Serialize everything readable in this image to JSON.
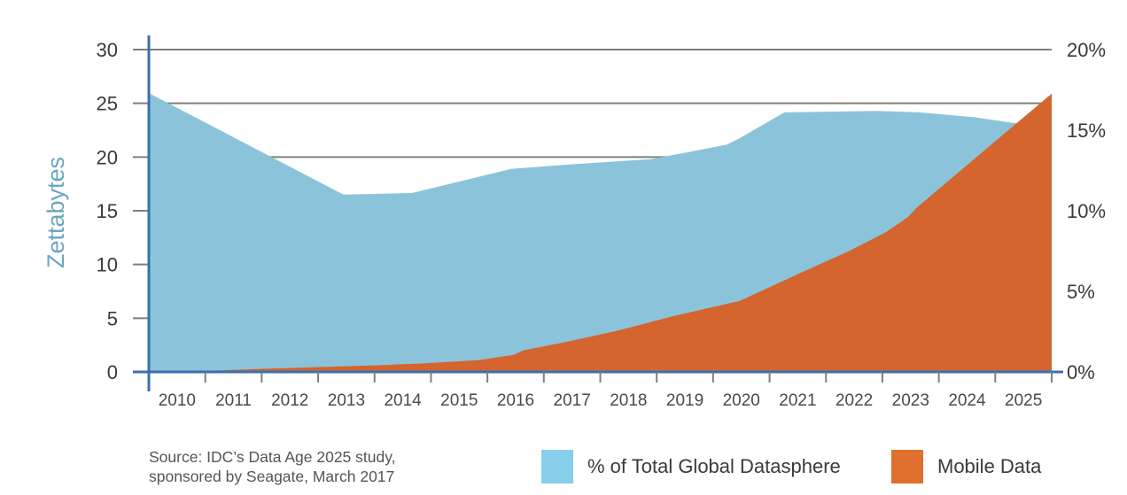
{
  "chart_data": {
    "type": "area",
    "title": "",
    "xlabel": "",
    "ylabel": "Zettabytes",
    "ylabel_right": "",
    "categories": [
      "2010",
      "2011",
      "2012",
      "2013",
      "2014",
      "2015",
      "2016",
      "2017",
      "2018",
      "2019",
      "2020",
      "2021",
      "2022",
      "2023",
      "2024",
      "2025"
    ],
    "x_range": [
      2009.5,
      2025.5
    ],
    "ylim": [
      0,
      30
    ],
    "y_ticks": [
      0,
      5,
      10,
      15,
      20,
      25,
      30
    ],
    "y_tick_labels": [
      "0",
      "5",
      "10",
      "15",
      "20",
      "25",
      "30"
    ],
    "ylim_right": [
      0,
      20
    ],
    "y_ticks_right": [
      0,
      5,
      10,
      15,
      20
    ],
    "y_tick_labels_right": [
      "0%",
      "5%",
      "10%",
      "15%",
      "20%"
    ],
    "grid": "horizontal",
    "legend_position": "bottom-right",
    "series": [
      {
        "name": "% of Total Global Datasphere",
        "axis": "right",
        "unit": "%",
        "color": "#8bc4da",
        "legend_color": "#87ceeb",
        "points": [
          [
            2009.5,
            17.3
          ],
          [
            2012.95,
            11.0
          ],
          [
            2014.16,
            11.1
          ],
          [
            2015.92,
            12.6
          ],
          [
            2017.07,
            12.9
          ],
          [
            2018.4,
            13.2
          ],
          [
            2019.74,
            14.1
          ],
          [
            2019.97,
            14.5
          ],
          [
            2020.76,
            16.1
          ],
          [
            2022.4,
            16.2
          ],
          [
            2023.19,
            16.1
          ],
          [
            2024.13,
            15.8
          ],
          [
            2024.92,
            15.4
          ],
          [
            2025.5,
            14.5
          ]
        ]
      },
      {
        "name": "Mobile Data",
        "axis": "left",
        "unit": "ZB",
        "color": "#d4652e",
        "legend_color": "#e0702e",
        "points": [
          [
            2009.5,
            0
          ],
          [
            2010.5,
            0.1
          ],
          [
            2011.57,
            0.3
          ],
          [
            2013.46,
            0.6
          ],
          [
            2014.4,
            0.8
          ],
          [
            2015.34,
            1.1
          ],
          [
            2015.97,
            1.6
          ],
          [
            2016.13,
            2.0
          ],
          [
            2017.0,
            2.9
          ],
          [
            2017.85,
            3.9
          ],
          [
            2018.8,
            5.2
          ],
          [
            2019.97,
            6.6
          ],
          [
            2021.0,
            9.1
          ],
          [
            2021.93,
            11.3
          ],
          [
            2022.56,
            13.0
          ],
          [
            2022.95,
            14.4
          ],
          [
            2023.11,
            15.3
          ],
          [
            2025.5,
            25.9
          ]
        ]
      }
    ]
  },
  "footer": {
    "source_line1": "Source: IDC’s Data Age 2025 study,",
    "source_line2": "sponsored by Seagate, March 2017"
  },
  "legend": [
    {
      "label": "% of Total Global Datasphere",
      "color": "#87ceeb"
    },
    {
      "label": "Mobile Data",
      "color": "#e0702e"
    }
  ]
}
